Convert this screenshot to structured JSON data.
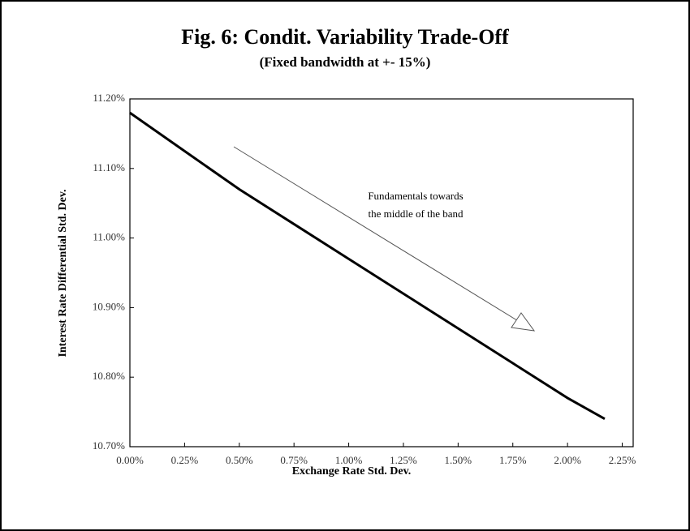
{
  "chart_data": {
    "type": "line",
    "title": "Fig. 6: Condit. Variability Trade-Off",
    "subtitle": "(Fixed bandwidth at +- 15%)",
    "x_label": "Exchange Rate Std. Dev.",
    "y_label": "Interest Rate Differential Std. Dev.",
    "annotation": [
      "Fundamentals towards",
      "the middle of the band"
    ],
    "x": [
      0,
      0.25,
      0.5,
      0.75,
      1,
      1.25,
      1.5,
      1.75,
      2,
      2.17
    ],
    "series": [
      {
        "color": "#000000",
        "values": [
          11.18,
          11.125,
          11.07,
          11.02,
          10.97,
          10.92,
          10.87,
          10.82,
          10.77,
          10.74
        ]
      }
    ],
    "xlim": [
      0,
      2.3
    ],
    "ylim": [
      10.7,
      11.2
    ],
    "xticks": [
      {
        "value": 0,
        "label": "0.00%"
      },
      {
        "value": 0.25,
        "label": "0.25%"
      },
      {
        "value": 0.5,
        "label": "0.50%"
      },
      {
        "value": 0.75,
        "label": "0.75%"
      },
      {
        "value": 1,
        "label": "1.00%"
      },
      {
        "value": 1.25,
        "label": "1.25%"
      },
      {
        "value": 1.5,
        "label": "1.50%"
      },
      {
        "value": 1.75,
        "label": "1.75%"
      },
      {
        "value": 2,
        "label": "2.00%"
      },
      {
        "value": 2.25,
        "label": "2.25%"
      }
    ],
    "yticks": [
      {
        "value": 10.7,
        "label": "10.70%"
      },
      {
        "value": 10.8,
        "label": "10.80%"
      },
      {
        "value": 10.9,
        "label": "10.90%"
      },
      {
        "value": 11,
        "label": "11.00%"
      },
      {
        "value": 11.1,
        "label": "11.10%"
      },
      {
        "value": 11.2,
        "label": "11.20%"
      }
    ]
  }
}
